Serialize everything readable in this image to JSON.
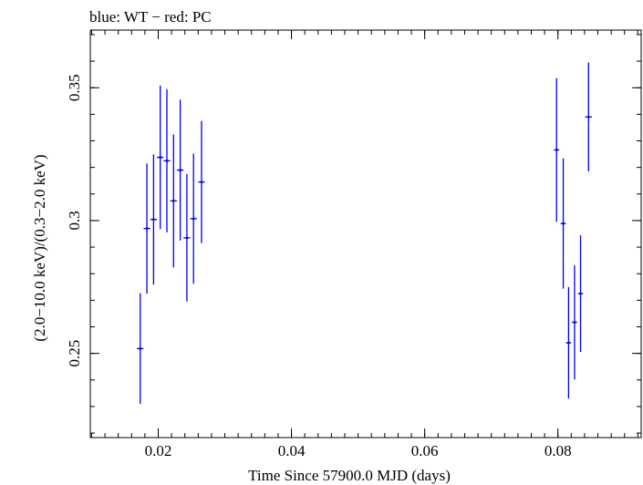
{
  "chart_data": {
    "type": "scatter",
    "title": "blue: WT − red: PC",
    "xlabel": "Time Since 57900.0 MJD (days)",
    "ylabel": "(2.0−10.0 keV)/(0.3−2.0 keV)",
    "xlim": [
      0.0098,
      0.0925
    ],
    "ylim": [
      0.2183,
      0.3717
    ],
    "x_ticks": [
      0.02,
      0.04,
      0.06,
      0.08
    ],
    "x_tick_labels": [
      "0.02",
      "0.04",
      "0.06",
      "0.08"
    ],
    "y_ticks": [
      0.25,
      0.3,
      0.35
    ],
    "y_tick_labels": [
      "0.25",
      "0.3",
      "0.35"
    ],
    "x_minor_step": 0.002,
    "y_minor_step": 0.01,
    "grid": false,
    "series": [
      {
        "name": "WT",
        "color": "#0000ee",
        "points": [
          {
            "x": 0.0173,
            "y": 0.2518,
            "yerr": 0.0208,
            "xerr": 0.0005
          },
          {
            "x": 0.0183,
            "y": 0.297,
            "yerr": 0.0245,
            "xerr": 0.0005
          },
          {
            "x": 0.0193,
            "y": 0.3004,
            "yerr": 0.0245,
            "xerr": 0.0005
          },
          {
            "x": 0.0203,
            "y": 0.3238,
            "yerr": 0.027,
            "xerr": 0.0005
          },
          {
            "x": 0.0213,
            "y": 0.3225,
            "yerr": 0.027,
            "xerr": 0.0005
          },
          {
            "x": 0.0223,
            "y": 0.3074,
            "yerr": 0.025,
            "xerr": 0.0005
          },
          {
            "x": 0.0233,
            "y": 0.319,
            "yerr": 0.0265,
            "xerr": 0.0005
          },
          {
            "x": 0.0243,
            "y": 0.2935,
            "yerr": 0.024,
            "xerr": 0.0005
          },
          {
            "x": 0.0253,
            "y": 0.3007,
            "yerr": 0.0245,
            "xerr": 0.0005
          },
          {
            "x": 0.0265,
            "y": 0.3145,
            "yerr": 0.023,
            "xerr": 0.0005
          },
          {
            "x": 0.0798,
            "y": 0.3266,
            "yerr": 0.027,
            "xerr": 0.0004
          },
          {
            "x": 0.0808,
            "y": 0.2989,
            "yerr": 0.0245,
            "xerr": 0.0004
          },
          {
            "x": 0.0816,
            "y": 0.254,
            "yerr": 0.021,
            "xerr": 0.0004
          },
          {
            "x": 0.0825,
            "y": 0.2617,
            "yerr": 0.0215,
            "xerr": 0.0004
          },
          {
            "x": 0.0834,
            "y": 0.2725,
            "yerr": 0.022,
            "xerr": 0.0004
          },
          {
            "x": 0.0846,
            "y": 0.339,
            "yerr": 0.0205,
            "xerr": 0.0005
          }
        ]
      }
    ]
  }
}
